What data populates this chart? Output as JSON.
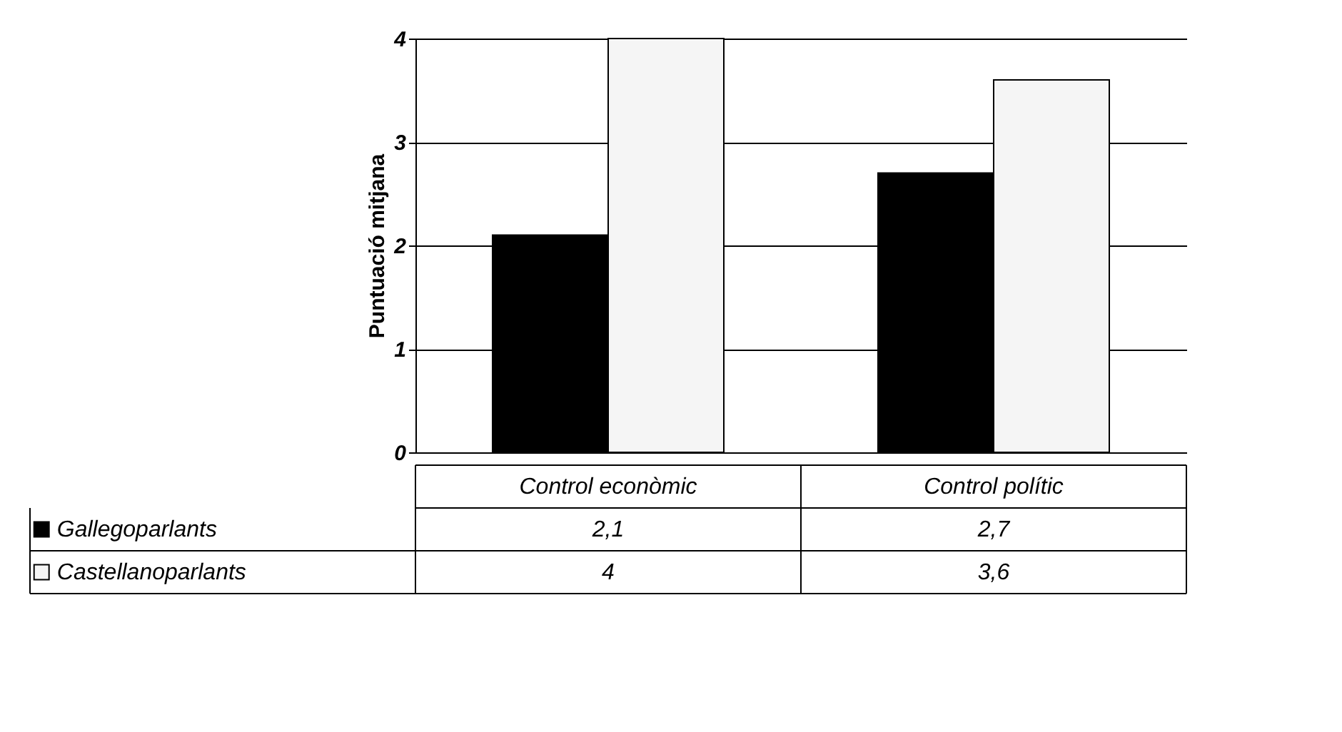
{
  "chart_data": {
    "type": "bar",
    "ylabel": "Puntuació mitjana",
    "categories": [
      "Control econòmic",
      "Control polític"
    ],
    "series": [
      {
        "name": "Gallegoparlants",
        "color": "#000000",
        "values": [
          2.1,
          2.7
        ],
        "value_labels": [
          "2,1",
          "2,7"
        ]
      },
      {
        "name": "Castellanoparlants",
        "color": "#f5f5f5",
        "values": [
          4,
          3.6
        ],
        "value_labels": [
          "4",
          "3,6"
        ]
      }
    ],
    "ylim": [
      0,
      4
    ],
    "yticks": [
      0,
      1,
      2,
      3,
      4
    ],
    "grid": "y",
    "legend": "bottom"
  }
}
